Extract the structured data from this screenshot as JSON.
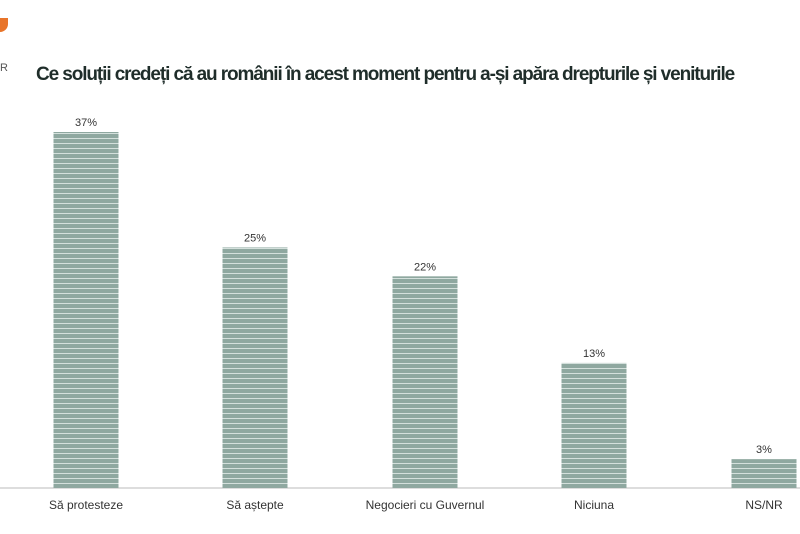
{
  "logo_text": "R",
  "chart_data": {
    "type": "bar",
    "title": "Ce soluții credeți că au românii în acest moment pentru a-și apăra drepturile și veniturile",
    "categories": [
      "Să protesteze",
      "Să aștepte",
      "Negocieri cu Guvernul",
      "Niciuna",
      "NS/NR"
    ],
    "values": [
      37,
      25,
      22,
      13,
      3
    ],
    "labels": [
      "37%",
      "25%",
      "22%",
      "13%",
      "3%"
    ],
    "ylim": [
      0,
      37
    ],
    "grid": false,
    "bar_color": "#8fa8a0",
    "stripe_color": "#d4e0dc"
  }
}
